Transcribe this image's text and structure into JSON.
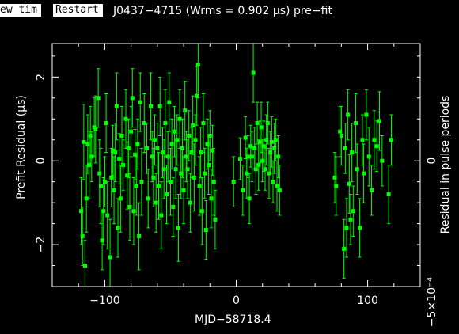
{
  "buttons": {
    "new_tim": "ew tim",
    "restart": "Restart"
  },
  "title": "J0437−4715 (Wrms = 0.902 μs) pre−fit",
  "chart_data": {
    "type": "scatter",
    "xlabel": "MJD−58718.4",
    "ylabel": "Prefit Residual (μs)",
    "ylabel_right": "Residual in pulse periods",
    "right_axis_zero_label": "0",
    "right_axis_bottom_label": "−5×10⁻⁴",
    "xlim": [
      -140,
      140
    ],
    "ylim": [
      -3,
      2.8
    ],
    "x_ticks": [
      -100,
      0,
      100
    ],
    "x_tick_labels": [
      "−100",
      "0",
      "100"
    ],
    "y_ticks": [
      -2,
      0,
      2
    ],
    "y_tick_labels": [
      "−2",
      "0",
      "2"
    ],
    "point_color": "#00ff00",
    "points": [
      {
        "x": -118,
        "y": -1.2,
        "e": 0.8
      },
      {
        "x": -117,
        "y": -1.8,
        "e": 0.7
      },
      {
        "x": -116,
        "y": 0.45,
        "e": 0.9
      },
      {
        "x": -115,
        "y": -2.5,
        "e": 0.6
      },
      {
        "x": -114,
        "y": -0.9,
        "e": 0.8
      },
      {
        "x": -113,
        "y": 0.4,
        "e": 0.7
      },
      {
        "x": -112,
        "y": -0.1,
        "e": 0.8
      },
      {
        "x": -111,
        "y": 0.6,
        "e": 0.7
      },
      {
        "x": -110,
        "y": 0.1,
        "e": 0.6
      },
      {
        "x": -108,
        "y": 0.8,
        "e": 0.7
      },
      {
        "x": -107,
        "y": 0.75,
        "e": 0.8
      },
      {
        "x": -105,
        "y": 1.5,
        "e": 0.7
      },
      {
        "x": -104,
        "y": -0.3,
        "e": 0.8
      },
      {
        "x": -103,
        "y": -0.6,
        "e": 0.9
      },
      {
        "x": -102,
        "y": -1.9,
        "e": 0.7
      },
      {
        "x": -101,
        "y": -1.2,
        "e": 0.8
      },
      {
        "x": -100,
        "y": -0.5,
        "e": 0.6
      },
      {
        "x": -99,
        "y": 0.9,
        "e": 0.7
      },
      {
        "x": -98,
        "y": -1.3,
        "e": 0.8
      },
      {
        "x": -96,
        "y": -2.3,
        "e": 0.9
      },
      {
        "x": -95,
        "y": -0.4,
        "e": 0.7
      },
      {
        "x": -94,
        "y": 0.25,
        "e": 0.6
      },
      {
        "x": -93,
        "y": -0.7,
        "e": 0.8
      },
      {
        "x": -92,
        "y": 0.2,
        "e": 0.7
      },
      {
        "x": -91,
        "y": 1.3,
        "e": 0.8
      },
      {
        "x": -90,
        "y": -1.6,
        "e": 0.7
      },
      {
        "x": -89,
        "y": 0.05,
        "e": 0.6
      },
      {
        "x": -88,
        "y": -0.9,
        "e": 0.8
      },
      {
        "x": -87,
        "y": 0.6,
        "e": 0.7
      },
      {
        "x": -86,
        "y": -0.1,
        "e": 0.6
      },
      {
        "x": -84,
        "y": 1.0,
        "e": 0.7
      },
      {
        "x": -83,
        "y": -0.35,
        "e": 0.8
      },
      {
        "x": -82,
        "y": 0.3,
        "e": 0.7
      },
      {
        "x": -81,
        "y": -1.1,
        "e": 0.8
      },
      {
        "x": -80,
        "y": 0.7,
        "e": 0.6
      },
      {
        "x": -79,
        "y": 1.5,
        "e": 0.7
      },
      {
        "x": -78,
        "y": -1.2,
        "e": 0.8
      },
      {
        "x": -77,
        "y": 0.15,
        "e": 0.6
      },
      {
        "x": -76,
        "y": -0.6,
        "e": 0.7
      },
      {
        "x": -75,
        "y": 0.4,
        "e": 0.6
      },
      {
        "x": -74,
        "y": -1.8,
        "e": 0.8
      },
      {
        "x": -73,
        "y": 1.4,
        "e": 0.7
      },
      {
        "x": -72,
        "y": -0.5,
        "e": 0.8
      },
      {
        "x": -70,
        "y": 0.9,
        "e": 0.7
      },
      {
        "x": -68,
        "y": 0.3,
        "e": 0.6
      },
      {
        "x": -67,
        "y": -0.9,
        "e": 0.7
      },
      {
        "x": -65,
        "y": 1.3,
        "e": 0.8
      },
      {
        "x": -64,
        "y": 0.1,
        "e": 0.6
      },
      {
        "x": -63,
        "y": -0.4,
        "e": 0.7
      },
      {
        "x": -62,
        "y": 0.5,
        "e": 0.6
      },
      {
        "x": -61,
        "y": -1.0,
        "e": 0.7
      },
      {
        "x": -60,
        "y": 0.3,
        "e": 0.6
      },
      {
        "x": -59,
        "y": -0.6,
        "e": 0.8
      },
      {
        "x": -58,
        "y": 1.3,
        "e": 0.7
      },
      {
        "x": -57,
        "y": -1.3,
        "e": 0.8
      },
      {
        "x": -56,
        "y": 0.2,
        "e": 0.6
      },
      {
        "x": -55,
        "y": -0.2,
        "e": 0.7
      },
      {
        "x": -54,
        "y": 0.9,
        "e": 0.8
      },
      {
        "x": -53,
        "y": -0.8,
        "e": 0.7
      },
      {
        "x": -52,
        "y": 0.1,
        "e": 0.6
      },
      {
        "x": -51,
        "y": 1.4,
        "e": 0.7
      },
      {
        "x": -50,
        "y": -0.5,
        "e": 0.8
      },
      {
        "x": -49,
        "y": 0.4,
        "e": 0.6
      },
      {
        "x": -48,
        "y": -1.1,
        "e": 0.7
      },
      {
        "x": -47,
        "y": 0.7,
        "e": 0.6
      },
      {
        "x": -46,
        "y": -0.2,
        "e": 0.7
      },
      {
        "x": -45,
        "y": 0.5,
        "e": 0.6
      },
      {
        "x": -44,
        "y": -1.6,
        "e": 0.8
      },
      {
        "x": -43,
        "y": 1.0,
        "e": 0.7
      },
      {
        "x": -42,
        "y": -0.3,
        "e": 0.6
      },
      {
        "x": -41,
        "y": 0.3,
        "e": 0.7
      },
      {
        "x": -40,
        "y": -0.7,
        "e": 0.8
      },
      {
        "x": -39,
        "y": 1.2,
        "e": 0.7
      },
      {
        "x": -38,
        "y": 0.1,
        "e": 0.6
      },
      {
        "x": -37,
        "y": -0.2,
        "e": 0.7
      },
      {
        "x": -36,
        "y": 0.6,
        "e": 0.6
      },
      {
        "x": -35,
        "y": -1.0,
        "e": 0.7
      },
      {
        "x": -34,
        "y": 0.2,
        "e": 0.6
      },
      {
        "x": -33,
        "y": 0.85,
        "e": 0.7
      },
      {
        "x": -32,
        "y": -0.4,
        "e": 0.8
      },
      {
        "x": -31,
        "y": 0.5,
        "e": 0.6
      },
      {
        "x": -30,
        "y": 1.55,
        "e": 0.7
      },
      {
        "x": -29,
        "y": 2.3,
        "e": 0.8
      },
      {
        "x": -28,
        "y": -0.6,
        "e": 0.7
      },
      {
        "x": -27,
        "y": 0.2,
        "e": 0.6
      },
      {
        "x": -26,
        "y": -1.2,
        "e": 0.8
      },
      {
        "x": -25,
        "y": 0.9,
        "e": 0.7
      },
      {
        "x": -24,
        "y": -0.3,
        "e": 0.6
      },
      {
        "x": -23,
        "y": -1.65,
        "e": 0.7
      },
      {
        "x": -22,
        "y": 0.4,
        "e": 0.6
      },
      {
        "x": -21,
        "y": -0.1,
        "e": 0.7
      },
      {
        "x": -20,
        "y": 0.6,
        "e": 0.6
      },
      {
        "x": -19,
        "y": -0.9,
        "e": 0.7
      },
      {
        "x": -18,
        "y": 0.25,
        "e": 0.6
      },
      {
        "x": -17,
        "y": -0.5,
        "e": 0.8
      },
      {
        "x": -16,
        "y": -1.4,
        "e": 0.7
      },
      {
        "x": -2,
        "y": -0.5,
        "e": 0.6
      },
      {
        "x": 3,
        "y": 0.05,
        "e": 0.5
      },
      {
        "x": 5,
        "y": -0.7,
        "e": 0.6
      },
      {
        "x": 7,
        "y": 0.55,
        "e": 0.5
      },
      {
        "x": 8,
        "y": -0.3,
        "e": 0.6
      },
      {
        "x": 9,
        "y": 0.1,
        "e": 0.5
      },
      {
        "x": 10,
        "y": -0.9,
        "e": 0.6
      },
      {
        "x": 11,
        "y": 0.35,
        "e": 0.5
      },
      {
        "x": 12,
        "y": 0.1,
        "e": 0.6
      },
      {
        "x": 13,
        "y": 2.1,
        "e": 0.7
      },
      {
        "x": 14,
        "y": 0.3,
        "e": 0.5
      },
      {
        "x": 15,
        "y": -0.2,
        "e": 0.6
      },
      {
        "x": 16,
        "y": 0.9,
        "e": 0.5
      },
      {
        "x": 17,
        "y": -0.1,
        "e": 0.6
      },
      {
        "x": 18,
        "y": 0.45,
        "e": 0.5
      },
      {
        "x": 19,
        "y": 0.8,
        "e": 0.6
      },
      {
        "x": 20,
        "y": 0.0,
        "e": 0.5
      },
      {
        "x": 21,
        "y": 0.35,
        "e": 0.6
      },
      {
        "x": 22,
        "y": -0.2,
        "e": 0.5
      },
      {
        "x": 23,
        "y": 0.5,
        "e": 0.6
      },
      {
        "x": 24,
        "y": 0.9,
        "e": 0.5
      },
      {
        "x": 25,
        "y": -0.3,
        "e": 0.6
      },
      {
        "x": 26,
        "y": 0.2,
        "e": 0.5
      },
      {
        "x": 27,
        "y": 0.45,
        "e": 0.6
      },
      {
        "x": 28,
        "y": -0.5,
        "e": 0.5
      },
      {
        "x": 29,
        "y": 0.3,
        "e": 0.6
      },
      {
        "x": 30,
        "y": 0.5,
        "e": 0.5
      },
      {
        "x": 31,
        "y": -0.6,
        "e": 0.6
      },
      {
        "x": 32,
        "y": 0.1,
        "e": 0.5
      },
      {
        "x": 33,
        "y": -0.7,
        "e": 0.6
      },
      {
        "x": 75,
        "y": -0.4,
        "e": 0.6
      },
      {
        "x": 76,
        "y": -0.6,
        "e": 0.7
      },
      {
        "x": 79,
        "y": 0.7,
        "e": 0.6
      },
      {
        "x": 80,
        "y": 0.6,
        "e": 0.7
      },
      {
        "x": 82,
        "y": -2.1,
        "e": 0.7
      },
      {
        "x": 83,
        "y": 0.3,
        "e": 0.6
      },
      {
        "x": 84,
        "y": -1.6,
        "e": 0.7
      },
      {
        "x": 85,
        "y": 1.1,
        "e": 0.6
      },
      {
        "x": 86,
        "y": -0.55,
        "e": 0.7
      },
      {
        "x": 87,
        "y": -1.4,
        "e": 0.6
      },
      {
        "x": 88,
        "y": 0.2,
        "e": 0.7
      },
      {
        "x": 89,
        "y": -1.2,
        "e": 0.6
      },
      {
        "x": 91,
        "y": 0.9,
        "e": 0.7
      },
      {
        "x": 92,
        "y": -0.2,
        "e": 0.6
      },
      {
        "x": 94,
        "y": -1.6,
        "e": 0.7
      },
      {
        "x": 96,
        "y": 0.5,
        "e": 0.6
      },
      {
        "x": 97,
        "y": -0.3,
        "e": 0.7
      },
      {
        "x": 99,
        "y": 1.1,
        "e": 0.6
      },
      {
        "x": 101,
        "y": 0.1,
        "e": 0.7
      },
      {
        "x": 103,
        "y": -0.7,
        "e": 0.6
      },
      {
        "x": 105,
        "y": 0.5,
        "e": 0.7
      },
      {
        "x": 107,
        "y": 0.35,
        "e": 0.6
      },
      {
        "x": 109,
        "y": 0.95,
        "e": 0.7
      },
      {
        "x": 111,
        "y": 0.0,
        "e": 0.6
      },
      {
        "x": 116,
        "y": -0.8,
        "e": 0.7
      },
      {
        "x": 118,
        "y": 0.5,
        "e": 0.6
      }
    ]
  }
}
